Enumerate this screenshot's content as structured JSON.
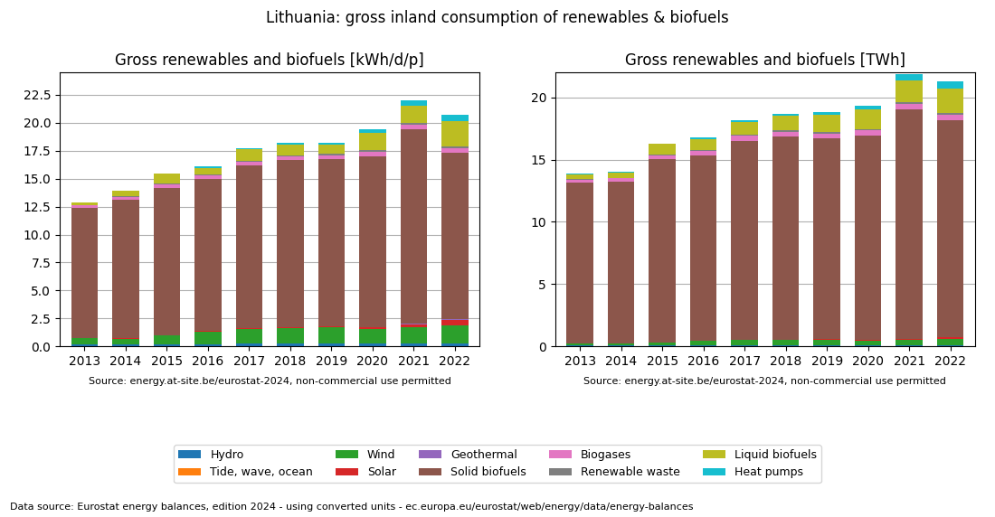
{
  "title": "Lithuania: gross inland consumption of renewables & biofuels",
  "annotations": [
    "Data source: Eurostat energy balances, edition 2024 - using converted units - ec.europa.eu/eurostat/web/energy/data/energy-balances"
  ],
  "legend": "lower center",
  "chart_data": [
    {
      "type": "bar",
      "stacked": true,
      "grid": true,
      "title": "Gross renewables and biofuels [kWh/d/p]",
      "annotations": [
        "Source: energy.at-site.be/eurostat-2024, non-commercial use permitted"
      ],
      "categories": [
        "2013",
        "2014",
        "2015",
        "2016",
        "2017",
        "2018",
        "2019",
        "2020",
        "2021",
        "2022"
      ],
      "ylim": [
        0,
        24.5
      ],
      "yticks": [
        0.0,
        2.5,
        5.0,
        7.5,
        10.0,
        12.5,
        15.0,
        17.5,
        20.0,
        22.5
      ],
      "series": [
        {
          "name": "Hydro",
          "values": [
            0.2,
            0.2,
            0.2,
            0.2,
            0.28,
            0.28,
            0.28,
            0.24,
            0.24,
            0.24
          ]
        },
        {
          "name": "Tide, wave, ocean",
          "values": [
            0.0,
            0.0,
            0.0,
            0.0,
            0.0,
            0.0,
            0.0,
            0.0,
            0.0,
            0.0
          ]
        },
        {
          "name": "Wind",
          "values": [
            0.55,
            0.5,
            0.75,
            1.1,
            1.3,
            1.35,
            1.4,
            1.3,
            1.45,
            1.65
          ]
        },
        {
          "name": "Solar",
          "values": [
            0.01,
            0.04,
            0.04,
            0.06,
            0.06,
            0.08,
            0.12,
            0.15,
            0.3,
            0.5
          ]
        },
        {
          "name": "Geothermal",
          "values": [
            0.0,
            0.0,
            0.0,
            0.02,
            0.02,
            0.02,
            0.02,
            0.02,
            0.02,
            0.02
          ]
        },
        {
          "name": "Solid biofuels",
          "values": [
            11.6,
            12.4,
            13.2,
            13.6,
            14.5,
            14.9,
            14.9,
            15.3,
            17.4,
            14.9
          ]
        },
        {
          "name": "Biogases",
          "values": [
            0.25,
            0.25,
            0.32,
            0.35,
            0.35,
            0.37,
            0.37,
            0.38,
            0.4,
            0.4
          ]
        },
        {
          "name": "Renewable waste",
          "values": [
            0.04,
            0.04,
            0.04,
            0.05,
            0.09,
            0.11,
            0.11,
            0.13,
            0.16,
            0.16
          ]
        },
        {
          "name": "Liquid biofuels",
          "values": [
            0.2,
            0.45,
            0.88,
            0.6,
            1.0,
            0.9,
            0.85,
            1.6,
            1.55,
            2.3
          ]
        },
        {
          "name": "Heat pumps",
          "values": [
            0.04,
            0.04,
            0.06,
            0.1,
            0.13,
            0.16,
            0.16,
            0.28,
            0.5,
            0.55
          ]
        }
      ]
    },
    {
      "type": "bar",
      "stacked": true,
      "grid": true,
      "title": "Gross renewables and biofuels [TWh]",
      "annotations": [
        "Source: energy.at-site.be/eurostat-2024, non-commercial use permitted"
      ],
      "categories": [
        "2013",
        "2014",
        "2015",
        "2016",
        "2017",
        "2018",
        "2019",
        "2020",
        "2021",
        "2022"
      ],
      "ylim": [
        0,
        22
      ],
      "yticks": [
        0,
        5,
        10,
        15,
        20
      ],
      "series": [
        {
          "name": "Hydro",
          "values": [
            0.06,
            0.06,
            0.06,
            0.06,
            0.08,
            0.08,
            0.08,
            0.07,
            0.07,
            0.07
          ]
        },
        {
          "name": "Tide, wave, ocean",
          "values": [
            0.0,
            0.0,
            0.0,
            0.0,
            0.0,
            0.0,
            0.0,
            0.0,
            0.0,
            0.0
          ]
        },
        {
          "name": "Wind",
          "values": [
            0.17,
            0.16,
            0.24,
            0.36,
            0.41,
            0.43,
            0.45,
            0.41,
            0.46,
            0.52
          ]
        },
        {
          "name": "Solar",
          "values": [
            0.0,
            0.01,
            0.01,
            0.02,
            0.02,
            0.03,
            0.04,
            0.05,
            0.09,
            0.16
          ]
        },
        {
          "name": "Geothermal",
          "values": [
            0.0,
            0.0,
            0.0,
            0.01,
            0.01,
            0.01,
            0.01,
            0.01,
            0.01,
            0.01
          ]
        },
        {
          "name": "Solid biofuels",
          "values": [
            12.9,
            13.0,
            14.7,
            14.9,
            16.0,
            16.3,
            16.1,
            16.4,
            18.4,
            17.4
          ]
        },
        {
          "name": "Biogases",
          "values": [
            0.26,
            0.26,
            0.34,
            0.37,
            0.37,
            0.39,
            0.39,
            0.39,
            0.41,
            0.41
          ]
        },
        {
          "name": "Renewable waste",
          "values": [
            0.04,
            0.04,
            0.04,
            0.05,
            0.1,
            0.11,
            0.11,
            0.13,
            0.16,
            0.16
          ]
        },
        {
          "name": "Liquid biofuels",
          "values": [
            0.4,
            0.43,
            0.85,
            0.9,
            1.05,
            1.15,
            1.45,
            1.6,
            1.75,
            2.0
          ]
        },
        {
          "name": "Heat pumps",
          "values": [
            0.04,
            0.04,
            0.06,
            0.1,
            0.13,
            0.16,
            0.16,
            0.28,
            0.5,
            0.55
          ]
        }
      ]
    }
  ]
}
